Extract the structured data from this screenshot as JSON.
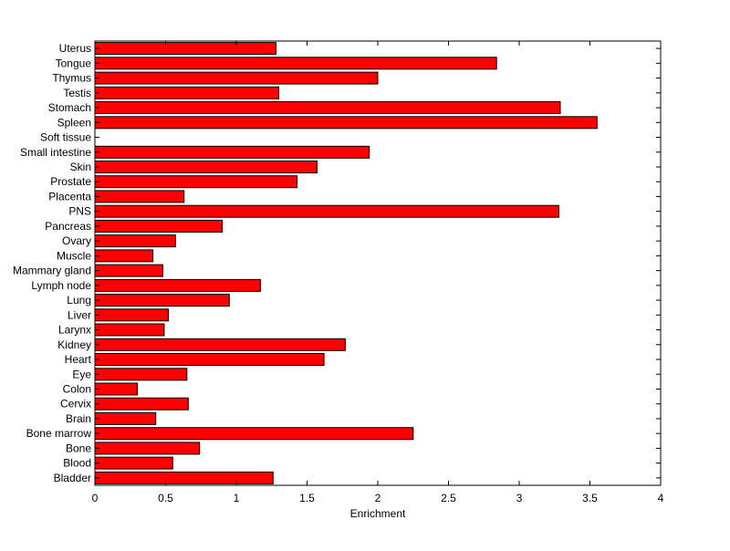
{
  "chart_data": {
    "type": "bar",
    "orientation": "horizontal",
    "title": "",
    "xlabel": "Enrichment",
    "ylabel": "",
    "xlim": [
      0,
      4
    ],
    "xticks": [
      "0",
      "0.5",
      "1",
      "1.5",
      "2",
      "2.5",
      "3",
      "3.5",
      "4"
    ],
    "grid": false,
    "bar_color": "#ff0000",
    "categories": [
      "Bladder",
      "Blood",
      "Bone",
      "Bone marrow",
      "Brain",
      "Cervix",
      "Colon",
      "Eye",
      "Heart",
      "Kidney",
      "Larynx",
      "Liver",
      "Lung",
      "Lymph node",
      "Mammary gland",
      "Muscle",
      "Ovary",
      "Pancreas",
      "PNS",
      "Placenta",
      "Prostate",
      "Skin",
      "Small intestine",
      "Soft tissue",
      "Spleen",
      "Stomach",
      "Testis",
      "Thymus",
      "Tongue",
      "Uterus"
    ],
    "values": [
      1.26,
      0.55,
      0.74,
      2.25,
      0.43,
      0.66,
      0.3,
      0.65,
      1.62,
      1.77,
      0.49,
      0.52,
      0.95,
      1.17,
      0.48,
      0.41,
      0.57,
      0.9,
      3.28,
      0.63,
      1.43,
      1.57,
      1.94,
      0,
      3.55,
      3.29,
      1.3,
      2.0,
      2.84,
      1.28
    ]
  }
}
